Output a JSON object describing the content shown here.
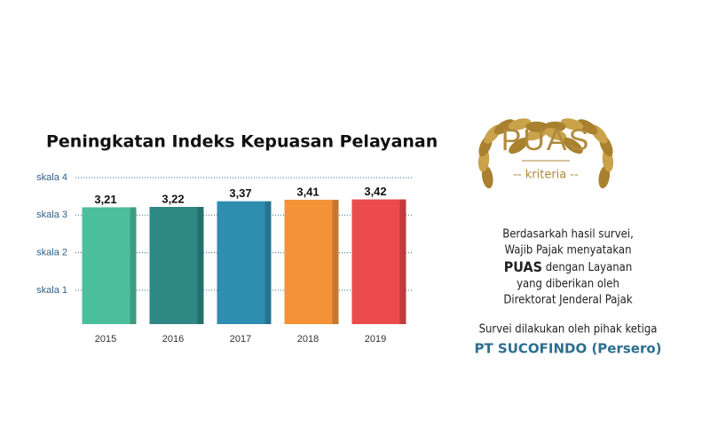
{
  "chart_data": {
    "type": "bar",
    "title": "Peningkatan Indeks Kepuasan Pelayanan",
    "categories": [
      "2015",
      "2016",
      "2017",
      "2018",
      "2019"
    ],
    "values": [
      3.21,
      3.22,
      3.37,
      3.41,
      3.42
    ],
    "value_labels": [
      "3,21",
      "3,22",
      "3,37",
      "3,41",
      "3,42"
    ],
    "colors": [
      "#4cbf9c",
      "#2e8884",
      "#2f8db0",
      "#f39237",
      "#eb4b4b"
    ],
    "ylim": [
      0.1,
      4
    ],
    "yticks": [
      {
        "value": 1,
        "label": "skala 1"
      },
      {
        "value": 2,
        "label": "skala 2"
      },
      {
        "value": 3,
        "label": "skala 3"
      },
      {
        "value": 4,
        "label": "skala 4"
      }
    ],
    "grid": true
  },
  "badge": {
    "title": "PUAS",
    "subtitle": "-- kriteria --"
  },
  "statement": {
    "line1": "Berdasarkah hasil survei,",
    "line2": "Wajib Pajak menyatakan",
    "line3_bold": "PUAS",
    "line3_rest": " dengan Layanan",
    "line4": "yang diberikan oleh",
    "line5": "Direktorat Jenderal Pajak"
  },
  "survey": {
    "line1": "Survei dilakukan oleh pihak ketiga",
    "company": "PT SUCOFINDO (Persero)"
  }
}
